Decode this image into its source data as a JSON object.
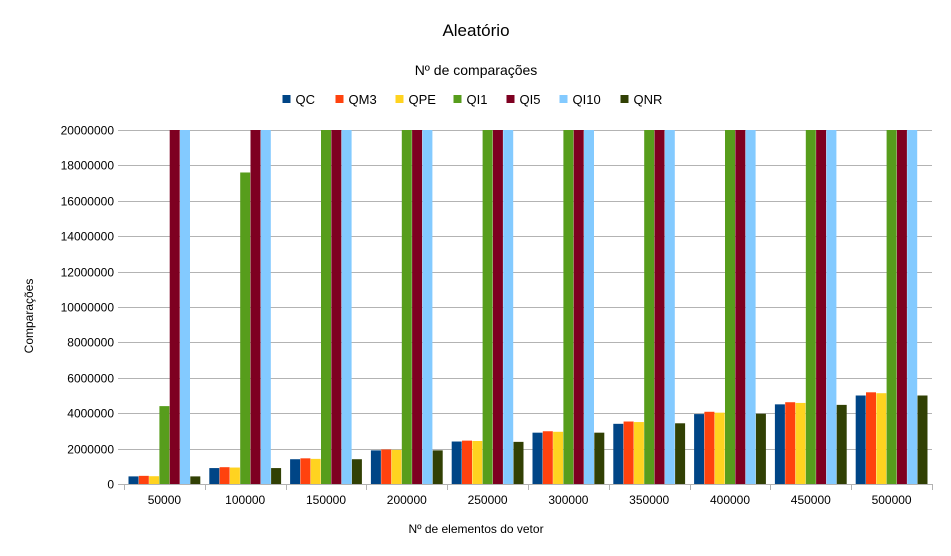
{
  "chart_data": {
    "type": "bar",
    "title": "Aleatório",
    "subtitle": "Nº de comparações",
    "xlabel": "Nº de elementos do vetor",
    "ylabel": "Comparações",
    "ylim": [
      0,
      20000000
    ],
    "yticks": [
      "0",
      "2000000",
      "4000000",
      "6000000",
      "8000000",
      "10000000",
      "12000000",
      "14000000",
      "16000000",
      "18000000",
      "20000000"
    ],
    "categories": [
      "50000",
      "100000",
      "150000",
      "200000",
      "250000",
      "300000",
      "350000",
      "400000",
      "450000",
      "500000"
    ],
    "legend_position": "top",
    "grid": "horizontal",
    "series": [
      {
        "name": "QC",
        "color": "#004586",
        "values": [
          430000,
          900000,
          1400000,
          1900000,
          2400000,
          2900000,
          3400000,
          3950000,
          4500000,
          5000000
        ]
      },
      {
        "name": "QM3",
        "color": "#ff420e",
        "values": [
          460000,
          950000,
          1450000,
          1950000,
          2450000,
          2980000,
          3530000,
          4080000,
          4620000,
          5180000
        ]
      },
      {
        "name": "QPE",
        "color": "#ffd320",
        "values": [
          440000,
          930000,
          1420000,
          1930000,
          2430000,
          2950000,
          3500000,
          4030000,
          4580000,
          5130000
        ]
      },
      {
        "name": "QI1",
        "color": "#579d1c",
        "values": [
          4400000,
          17600000,
          20000000,
          20000000,
          20000000,
          20000000,
          20000000,
          20000000,
          20000000,
          20000000
        ]
      },
      {
        "name": "QI5",
        "color": "#7e0021",
        "values": [
          20000000,
          20000000,
          20000000,
          20000000,
          20000000,
          20000000,
          20000000,
          20000000,
          20000000,
          20000000
        ]
      },
      {
        "name": "QI10",
        "color": "#83caff",
        "values": [
          20000000,
          20000000,
          20000000,
          20000000,
          20000000,
          20000000,
          20000000,
          20000000,
          20000000,
          20000000
        ]
      },
      {
        "name": "QNR",
        "color": "#314004",
        "values": [
          430000,
          900000,
          1400000,
          1900000,
          2380000,
          2900000,
          3430000,
          3970000,
          4470000,
          5000000
        ]
      }
    ]
  }
}
